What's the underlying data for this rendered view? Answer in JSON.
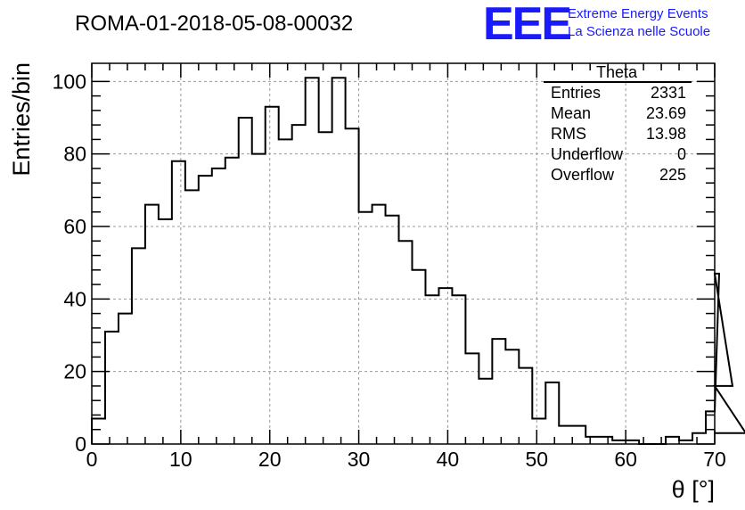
{
  "header": {
    "title": "ROMA-01-2018-05-08-00032",
    "logo_text": "EEE",
    "logo_line1": "Extreme Energy Events",
    "logo_line2": "La Scienza nelle Scuole",
    "logo_color": "#1a1aff"
  },
  "stats_box": {
    "title": "Theta",
    "rows": [
      {
        "label": "Entries",
        "value": "2331"
      },
      {
        "label": "Mean",
        "value": "23.69"
      },
      {
        "label": "RMS",
        "value": "13.98"
      },
      {
        "label": "Underflow",
        "value": "0"
      },
      {
        "label": "Overflow",
        "value": "225"
      }
    ]
  },
  "chart_data": {
    "type": "bar",
    "style": "step-histogram",
    "title": "ROMA-01-2018-05-08-00032",
    "xlabel": "θ [°]",
    "ylabel": "Entries/bin",
    "xlim": [
      0,
      70
    ],
    "ylim": [
      0,
      105
    ],
    "bin_width": 1.5,
    "bin_start": 0,
    "xticks": [
      0,
      10,
      20,
      30,
      40,
      50,
      60,
      70
    ],
    "yticks": [
      0,
      20,
      40,
      60,
      80,
      100
    ],
    "grid": true,
    "legend": "top-right stats box",
    "values": [
      7,
      31,
      36,
      54,
      66,
      62,
      78,
      70,
      74,
      76,
      79,
      90,
      80,
      93,
      84,
      88,
      101,
      86,
      101,
      87,
      64,
      66,
      63,
      56,
      48,
      41,
      43,
      41,
      25,
      18,
      29,
      26,
      21,
      7,
      17,
      5,
      5,
      2,
      2,
      1,
      1,
      0,
      0,
      2,
      1,
      3,
      9,
      47,
      16,
      3
    ]
  }
}
